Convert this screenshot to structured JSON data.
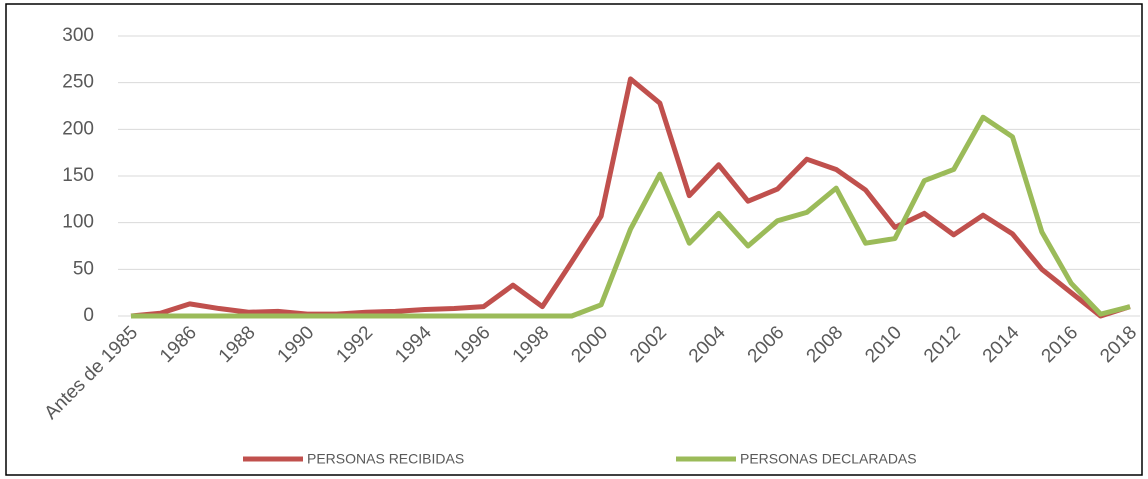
{
  "chart_data": {
    "type": "line",
    "categories": [
      "Antes de 1985",
      null,
      "1986",
      null,
      "1988",
      null,
      "1990",
      null,
      "1992",
      null,
      "1994",
      null,
      "1996",
      null,
      "1998",
      null,
      "2000",
      null,
      "2002",
      null,
      "2004",
      null,
      "2006",
      null,
      "2008",
      null,
      "2010",
      null,
      "2012",
      null,
      "2014",
      null,
      "2016",
      null,
      "2018"
    ],
    "series": [
      {
        "name": "PERSONAS RECIBIDAS",
        "color": "#c0504d",
        "values": [
          0,
          3,
          13,
          8,
          4,
          5,
          2,
          2,
          4,
          5,
          7,
          8,
          10,
          33,
          10,
          58,
          107,
          254,
          228,
          129,
          162,
          123,
          136,
          168,
          157,
          135,
          95,
          110,
          87,
          108,
          88,
          50,
          25,
          0,
          10
        ]
      },
      {
        "name": "PERSONAS DECLARADAS",
        "color": "#9bbb59",
        "values": [
          0,
          0,
          0,
          0,
          0,
          0,
          0,
          0,
          0,
          0,
          0,
          0,
          0,
          0,
          0,
          0,
          12,
          93,
          152,
          78,
          110,
          75,
          102,
          111,
          137,
          78,
          83,
          145,
          157,
          213,
          192,
          90,
          35,
          2,
          10
        ]
      }
    ],
    "ylim": [
      0,
      300
    ],
    "yticks": [
      0,
      50,
      100,
      150,
      200,
      250,
      300
    ],
    "grid": true
  }
}
